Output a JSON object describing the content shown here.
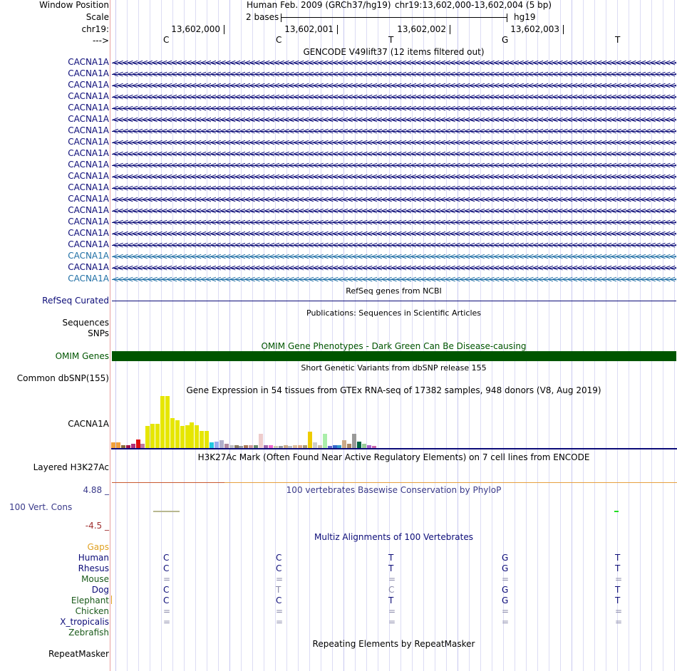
{
  "header": {
    "window_position_label": "Window Position",
    "scale_label": "Scale",
    "chr_label": "chr19:",
    "strand_label": "--->",
    "assembly": "Human Feb. 2009 (GRCh37/hg19)",
    "position": "chr19:13,602,000-13,602,004 (5 bp)",
    "scale_text": "2 bases",
    "db": "hg19",
    "coords": [
      "13,602,000",
      "13,602,001",
      "13,602,002",
      "13,602,003"
    ],
    "bases": [
      "C",
      "C",
      "T",
      "G",
      "T"
    ]
  },
  "gencode": {
    "title": "GENCODE V49lift37 (12 items filtered out)",
    "genes": [
      {
        "name": "CACNA1A",
        "color": "#0c0c78"
      },
      {
        "name": "CACNA1A",
        "color": "#0c0c78"
      },
      {
        "name": "CACNA1A",
        "color": "#0c0c78"
      },
      {
        "name": "CACNA1A",
        "color": "#0c0c78"
      },
      {
        "name": "CACNA1A",
        "color": "#0c0c78"
      },
      {
        "name": "CACNA1A",
        "color": "#0c0c78"
      },
      {
        "name": "CACNA1A",
        "color": "#0c0c78"
      },
      {
        "name": "CACNA1A",
        "color": "#0c0c78"
      },
      {
        "name": "CACNA1A",
        "color": "#0c0c78"
      },
      {
        "name": "CACNA1A",
        "color": "#0c0c78"
      },
      {
        "name": "CACNA1A",
        "color": "#0c0c78"
      },
      {
        "name": "CACNA1A",
        "color": "#0c0c78"
      },
      {
        "name": "CACNA1A",
        "color": "#0c0c78"
      },
      {
        "name": "CACNA1A",
        "color": "#0c0c78"
      },
      {
        "name": "CACNA1A",
        "color": "#0c0c78"
      },
      {
        "name": "CACNA1A",
        "color": "#0c0c78"
      },
      {
        "name": "CACNA1A",
        "color": "#0c0c78"
      },
      {
        "name": "CACNA1A",
        "color": "#1f6fa5"
      },
      {
        "name": "CACNA1A",
        "color": "#0c0c78"
      },
      {
        "name": "CACNA1A",
        "color": "#1f6fa5"
      }
    ],
    "arrows": "<<<<<<<<<<<<<<<<<<<<<<<<<<<<<<<<<<<<<<<<<<<<<<<<<<<<<<<<<<<<<<<<<<<<<<<<<<<<<<<<<<<<<<<<<<<<<<<<<<<<<<<<<<<<<<<<<<<<<<<<<<<<<<<<<<<<<<<<<<<<<<<<<<<<<<<<<<<<<<<<<<<<<<<<<<<<<<<<<<<<"
  },
  "refseq": {
    "title": "RefSeq genes from NCBI",
    "label": "RefSeq Curated",
    "color": "#0c0c78"
  },
  "publications": {
    "title": "Publications: Sequences in Scientific Articles",
    "label1": "Sequences",
    "label2": "SNPs"
  },
  "omim": {
    "title": "OMIM Gene Phenotypes - Dark Green Can Be Disease-causing",
    "label": "OMIM Genes",
    "color": "#005500"
  },
  "dbsnp": {
    "title": "Short Genetic Variants from dbSNP release 155",
    "label": "Common dbSNP(155)"
  },
  "gtex": {
    "title": "Gene Expression in 54 tissues from GTEx RNA-seq of 17382 samples, 948 donors (V8, Aug 2019)",
    "label": "CACNA1A",
    "bars": [
      {
        "v": 0.11,
        "c": "#f2a03a"
      },
      {
        "v": 0.11,
        "c": "#f2a03a"
      },
      {
        "v": 0.06,
        "c": "#8a6a3a"
      },
      {
        "v": 0.06,
        "c": "#a0154a"
      },
      {
        "v": 0.08,
        "c": "#b0307a"
      },
      {
        "v": 0.17,
        "c": "#e01010"
      },
      {
        "v": 0.08,
        "c": "#c07aa0"
      },
      {
        "v": 0.42,
        "c": "#e6e600"
      },
      {
        "v": 0.47,
        "c": "#e6e600"
      },
      {
        "v": 0.47,
        "c": "#e6e600"
      },
      {
        "v": 1.0,
        "c": "#e6e600"
      },
      {
        "v": 1.0,
        "c": "#e6e600"
      },
      {
        "v": 0.58,
        "c": "#e6e600"
      },
      {
        "v": 0.53,
        "c": "#e6e600"
      },
      {
        "v": 0.42,
        "c": "#e6e600"
      },
      {
        "v": 0.44,
        "c": "#e6e600"
      },
      {
        "v": 0.49,
        "c": "#e6e600"
      },
      {
        "v": 0.44,
        "c": "#e6e600"
      },
      {
        "v": 0.33,
        "c": "#e6e600"
      },
      {
        "v": 0.33,
        "c": "#e6e600"
      },
      {
        "v": 0.11,
        "c": "#22c8e0"
      },
      {
        "v": 0.13,
        "c": "#99aaee"
      },
      {
        "v": 0.15,
        "c": "#b0b0cc"
      },
      {
        "v": 0.08,
        "c": "#b08aa0"
      },
      {
        "v": 0.06,
        "c": "#c0c0c0"
      },
      {
        "v": 0.06,
        "c": "#8a7a60"
      },
      {
        "v": 0.04,
        "c": "#999999"
      },
      {
        "v": 0.06,
        "c": "#aa7755"
      },
      {
        "v": 0.06,
        "c": "#cc9999"
      },
      {
        "v": 0.06,
        "c": "#6a8a6a"
      },
      {
        "v": 0.28,
        "c": "#eecccc"
      },
      {
        "v": 0.06,
        "c": "#9966aa"
      },
      {
        "v": 0.06,
        "c": "#ee66cc"
      },
      {
        "v": 0.04,
        "c": "#ccccaa"
      },
      {
        "v": 0.04,
        "c": "#999999"
      },
      {
        "v": 0.06,
        "c": "#ccaa88"
      },
      {
        "v": 0.04,
        "c": "#bbbbbb"
      },
      {
        "v": 0.06,
        "c": "#ddbb99"
      },
      {
        "v": 0.06,
        "c": "#ddaa88"
      },
      {
        "v": 0.06,
        "c": "#aa9977"
      },
      {
        "v": 0.32,
        "c": "#eecc00"
      },
      {
        "v": 0.11,
        "c": "#cccccc"
      },
      {
        "v": 0.06,
        "c": "#ccbbaa"
      },
      {
        "v": 0.28,
        "c": "#aaeeaa"
      },
      {
        "v": 0.04,
        "c": "#6666cc"
      },
      {
        "v": 0.06,
        "c": "#3366cc"
      },
      {
        "v": 0.06,
        "c": "#3399cc"
      },
      {
        "v": 0.15,
        "c": "#ccaa88"
      },
      {
        "v": 0.08,
        "c": "#aa8866"
      },
      {
        "v": 0.28,
        "c": "#999999"
      },
      {
        "v": 0.13,
        "c": "#006644"
      },
      {
        "v": 0.08,
        "c": "#99cc99"
      },
      {
        "v": 0.06,
        "c": "#aa66cc"
      },
      {
        "v": 0.04,
        "c": "#cc66aa"
      }
    ]
  },
  "h3k27ac": {
    "title": "H3K27Ac Mark (Often Found Near Active Regulatory Elements) on 7 cell lines from ENCODE",
    "label": "Layered H3K27Ac"
  },
  "phylop": {
    "title": "100 vertebrates Basewise Conservation by PhyloP",
    "label": "100 Vert. Cons",
    "max": "4.88 _",
    "min": "-4.5 _"
  },
  "multiz": {
    "title": "Multiz Alignments of 100 Vertebrates",
    "gaps_label": "Gaps",
    "species": [
      {
        "name": "Human",
        "color": "#0c0c78",
        "bases": [
          "C",
          "C",
          "T",
          "G",
          "T"
        ]
      },
      {
        "name": "Rhesus",
        "color": "#0c0c78",
        "bases": [
          "C",
          "C",
          "T",
          "G",
          "T"
        ]
      },
      {
        "name": "Mouse",
        "color": "#1a5a1a",
        "bases": [
          "=",
          "=",
          "=",
          "=",
          "="
        ]
      },
      {
        "name": "Dog",
        "color": "#0c0c78",
        "bases": [
          "C",
          "T",
          "C",
          "G",
          "T"
        ]
      },
      {
        "name": "Elephant",
        "color": "#1a5a1a",
        "bases": [
          "C",
          "C",
          "T",
          "G",
          "T"
        ]
      },
      {
        "name": "Chicken",
        "color": "#1a5a1a",
        "bases": [
          "=",
          "=",
          "=",
          "=",
          "="
        ]
      },
      {
        "name": "X_tropicalis",
        "color": "#0c0c78",
        "bases": [
          "=",
          "=",
          "=",
          "=",
          "="
        ]
      },
      {
        "name": "Zebrafish",
        "color": "#1a5a1a",
        "bases": [
          "",
          "",
          "",
          "",
          ""
        ]
      }
    ]
  },
  "repeatmasker": {
    "title": "Repeating Elements by RepeatMasker",
    "label": "RepeatMasker"
  }
}
